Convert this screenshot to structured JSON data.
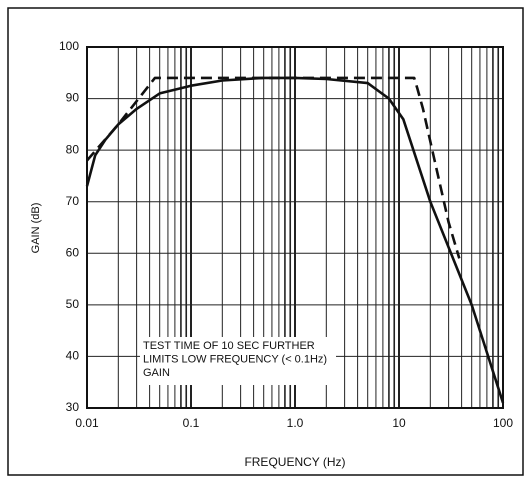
{
  "chart_data": {
    "type": "line",
    "x_label": "FREQUENCY (Hz)",
    "y_label": "GAIN (dB)",
    "annotation": [
      "TEST TIME OF 10 SEC FURTHER",
      "LIMITS LOW FREQUENCY (< 0.1Hz)",
      "GAIN"
    ],
    "log_x": true,
    "grid": true,
    "minor_grid": true,
    "xlim": [
      0.01,
      100
    ],
    "ylim": [
      30,
      100
    ],
    "xticks": [
      0.01,
      0.1,
      {
        "value": 1,
        "label": "1.0"
      },
      10,
      100
    ],
    "yticks": [
      30,
      40,
      50,
      60,
      70,
      80,
      90,
      100
    ],
    "series": [
      {
        "color": "#111111",
        "style": "solid",
        "x": [
          0.01,
          0.012,
          0.015,
          0.02,
          0.03,
          0.05,
          0.1,
          0.2,
          0.5,
          1,
          2,
          5,
          8,
          11,
          20,
          50,
          100
        ],
        "values": [
          73,
          79,
          82,
          85,
          88,
          91,
          92.5,
          93.5,
          94,
          94,
          93.8,
          93,
          90,
          86,
          70,
          50,
          31
        ]
      },
      {
        "color": "#111111",
        "style": "dashed",
        "x": [
          0.01,
          0.02,
          0.045,
          1,
          14,
          15,
          17,
          22,
          30,
          38
        ],
        "values": [
          78,
          85,
          94,
          94,
          94,
          92,
          88,
          78,
          66,
          59
        ]
      }
    ]
  }
}
